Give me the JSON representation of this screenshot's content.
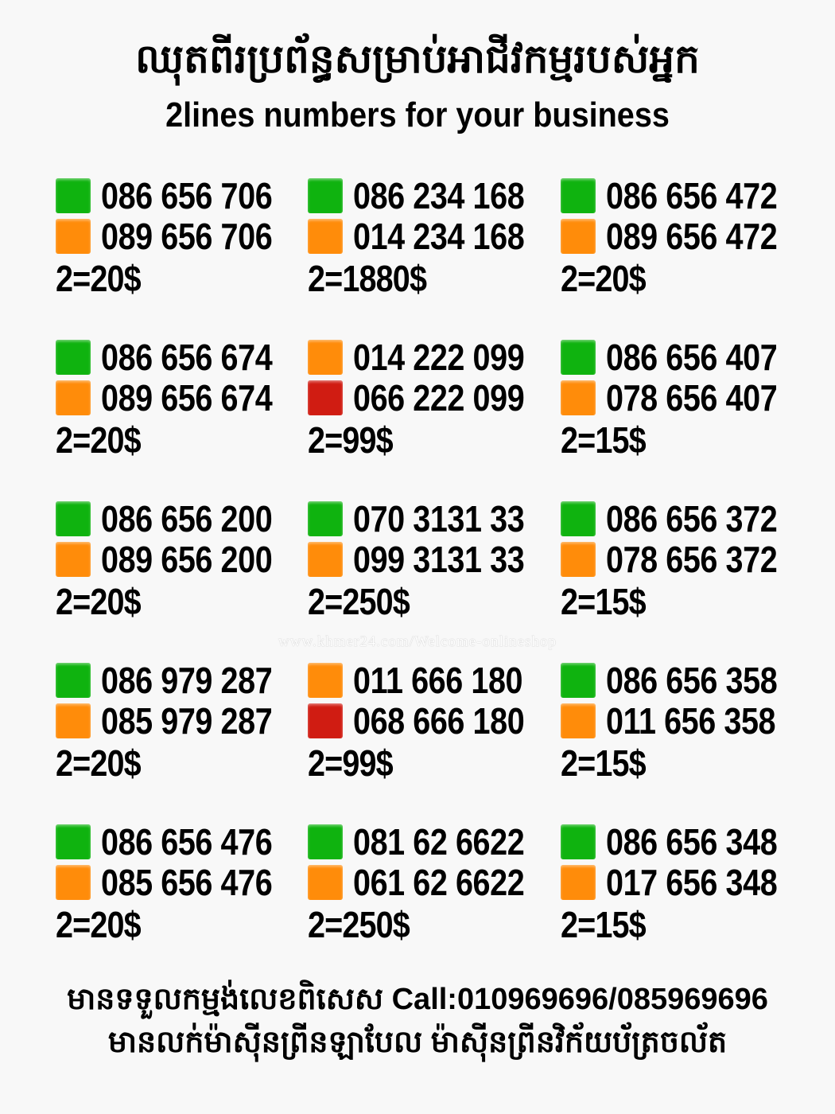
{
  "header": {
    "title_khmer": "ឈុតពីរប្រព័ន្ធសម្រាប់អាជីវកម្មរបស់អ្នក",
    "title_english": "2lines numbers for your business"
  },
  "colors": {
    "green": "#0fb30f",
    "orange": "#ff8c0a",
    "red": "#d01c12"
  },
  "sets": [
    {
      "lines": [
        {
          "color": "green",
          "number": "086 656 706"
        },
        {
          "color": "orange",
          "number": "089 656 706"
        }
      ],
      "price": "2=20$"
    },
    {
      "lines": [
        {
          "color": "green",
          "number": "086 234 168"
        },
        {
          "color": "orange",
          "number": "014 234 168"
        }
      ],
      "price": "2=1880$"
    },
    {
      "lines": [
        {
          "color": "green",
          "number": "086 656 472"
        },
        {
          "color": "orange",
          "number": "089 656 472"
        }
      ],
      "price": "2=20$"
    },
    {
      "lines": [
        {
          "color": "green",
          "number": "086 656 674"
        },
        {
          "color": "orange",
          "number": "089 656 674"
        }
      ],
      "price": "2=20$"
    },
    {
      "lines": [
        {
          "color": "orange",
          "number": "014 222 099"
        },
        {
          "color": "red",
          "number": "066 222 099"
        }
      ],
      "price": "2=99$"
    },
    {
      "lines": [
        {
          "color": "green",
          "number": "086 656 407"
        },
        {
          "color": "orange",
          "number": "078 656 407"
        }
      ],
      "price": "2=15$"
    },
    {
      "lines": [
        {
          "color": "green",
          "number": "086 656 200"
        },
        {
          "color": "orange",
          "number": "089 656 200"
        }
      ],
      "price": "2=20$"
    },
    {
      "lines": [
        {
          "color": "green",
          "number": "070 3131 33"
        },
        {
          "color": "orange",
          "number": "099 3131 33"
        }
      ],
      "price": "2=250$"
    },
    {
      "lines": [
        {
          "color": "green",
          "number": "086 656 372"
        },
        {
          "color": "orange",
          "number": "078 656 372"
        }
      ],
      "price": "2=15$"
    },
    {
      "lines": [
        {
          "color": "green",
          "number": "086 979 287"
        },
        {
          "color": "orange",
          "number": "085 979 287"
        }
      ],
      "price": "2=20$"
    },
    {
      "lines": [
        {
          "color": "orange",
          "number": "011 666 180"
        },
        {
          "color": "red",
          "number": "068 666 180"
        }
      ],
      "price": "2=99$"
    },
    {
      "lines": [
        {
          "color": "green",
          "number": "086 656 358"
        },
        {
          "color": "orange",
          "number": "011 656 358"
        }
      ],
      "price": "2=15$"
    },
    {
      "lines": [
        {
          "color": "green",
          "number": "086 656 476"
        },
        {
          "color": "orange",
          "number": "085 656 476"
        }
      ],
      "price": "2=20$"
    },
    {
      "lines": [
        {
          "color": "green",
          "number": "081 62 6622"
        },
        {
          "color": "orange",
          "number": "061 62 6622"
        }
      ],
      "price": "2=250$"
    },
    {
      "lines": [
        {
          "color": "green",
          "number": "086 656 348"
        },
        {
          "color": "orange",
          "number": "017 656 348"
        }
      ],
      "price": "2=15$"
    }
  ],
  "watermark": "www.khmer24.com/Welcome-onlineshop",
  "footer": {
    "line1": "មានទទួលកម្មង់លេខពិសេស Call:010969696/085969696",
    "line2": "មានលក់ម៉ាស៊ីនព្រីនឡាបែល ម៉ាស៊ីនព្រីនវិក័យប័ត្រចល័ត"
  }
}
